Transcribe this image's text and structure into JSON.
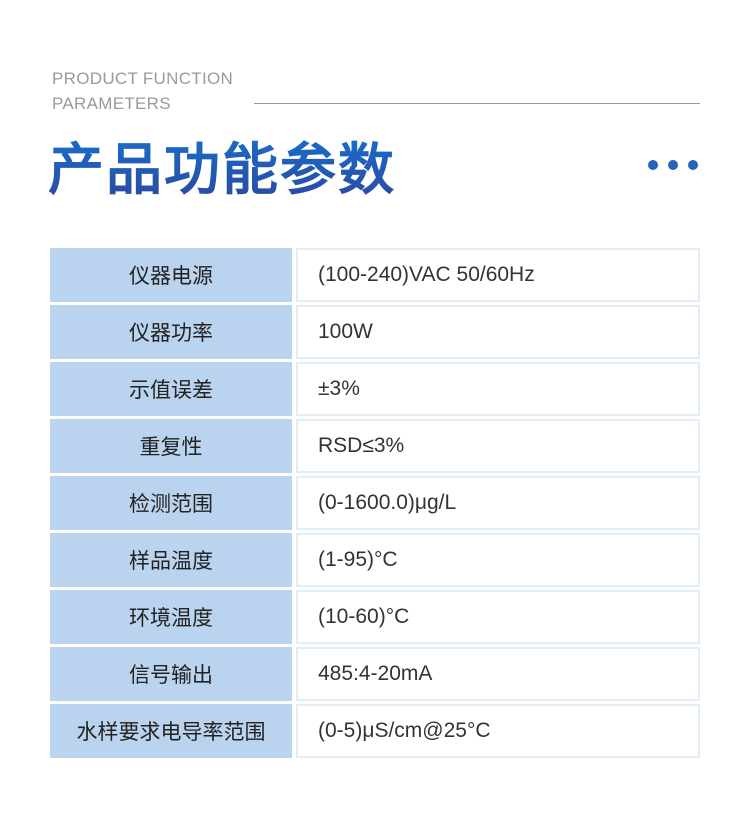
{
  "header": {
    "subtitle_line1": "PRODUCT FUNCTION",
    "subtitle_line2": "PARAMETERS",
    "title": "产品功能参数",
    "accent_color": "#2563b8"
  },
  "params": [
    {
      "label": "仪器电源",
      "value": "(100-240)VAC 50/60Hz"
    },
    {
      "label": "仪器功率",
      "value": "100W"
    },
    {
      "label": "示值误差",
      "value": "±3%"
    },
    {
      "label": "重复性",
      "value": "RSD≤3%"
    },
    {
      "label": "检测范围",
      "value": "(0-1600.0)μg/L"
    },
    {
      "label": "样品温度",
      "value": "(1-95)°C"
    },
    {
      "label": "环境温度",
      "value": "(10-60)°C"
    },
    {
      "label": "信号输出",
      "value": "485:4-20mA"
    },
    {
      "label": "水样要求电导率范围",
      "value": "(0-5)μS/cm@25°C"
    }
  ]
}
